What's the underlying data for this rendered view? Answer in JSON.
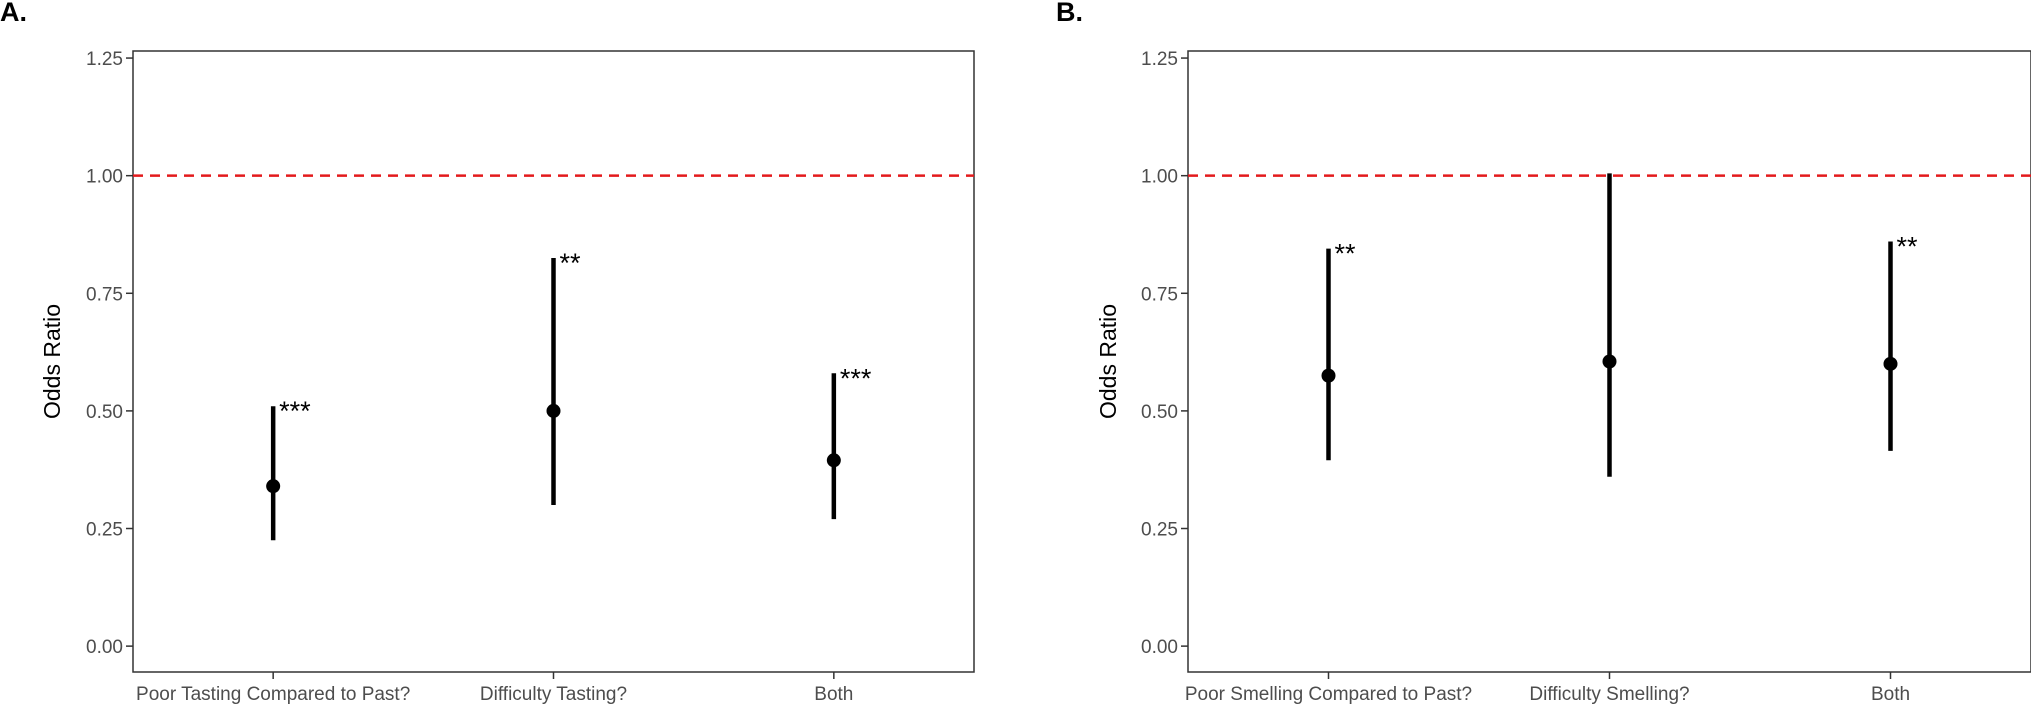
{
  "chart_data": [
    {
      "type": "errorbar",
      "panel_label": "A.",
      "ylabel": "Odds Ratio",
      "xlabel": "",
      "ylim": [
        -0.055,
        1.265
      ],
      "y_ticks": [
        "0.00",
        "0.25",
        "0.50",
        "0.75",
        "1.00",
        "1.25"
      ],
      "y_tick_values": [
        0,
        0.25,
        0.5,
        0.75,
        1.0,
        1.25
      ],
      "reference_line": {
        "y": 1.0,
        "color": "#e31a1c",
        "style": "dashed"
      },
      "categories": [
        "Poor Tasting Compared to Past?",
        "Difficulty Tasting?",
        "Both"
      ],
      "points": [
        {
          "estimate": 0.34,
          "lower": 0.225,
          "upper": 0.51,
          "significance": "***"
        },
        {
          "estimate": 0.5,
          "lower": 0.3,
          "upper": 0.825,
          "significance": "**"
        },
        {
          "estimate": 0.395,
          "lower": 0.27,
          "upper": 0.58,
          "significance": "***"
        }
      ],
      "grid": false
    },
    {
      "type": "errorbar",
      "panel_label": "B.",
      "ylabel": "Odds Ratio",
      "xlabel": "",
      "ylim": [
        -0.055,
        1.265
      ],
      "y_ticks": [
        "0.00",
        "0.25",
        "0.50",
        "0.75",
        "1.00",
        "1.25"
      ],
      "y_tick_values": [
        0,
        0.25,
        0.5,
        0.75,
        1.0,
        1.25
      ],
      "reference_line": {
        "y": 1.0,
        "color": "#e31a1c",
        "style": "dashed"
      },
      "categories": [
        "Poor Smelling Compared to Past?",
        "Difficulty Smelling?",
        "Both"
      ],
      "points": [
        {
          "estimate": 0.575,
          "lower": 0.395,
          "upper": 0.845,
          "significance": "**"
        },
        {
          "estimate": 0.605,
          "lower": 0.36,
          "upper": 1.005,
          "significance": ""
        },
        {
          "estimate": 0.6,
          "lower": 0.415,
          "upper": 0.86,
          "significance": "**"
        }
      ],
      "grid": false
    }
  ]
}
